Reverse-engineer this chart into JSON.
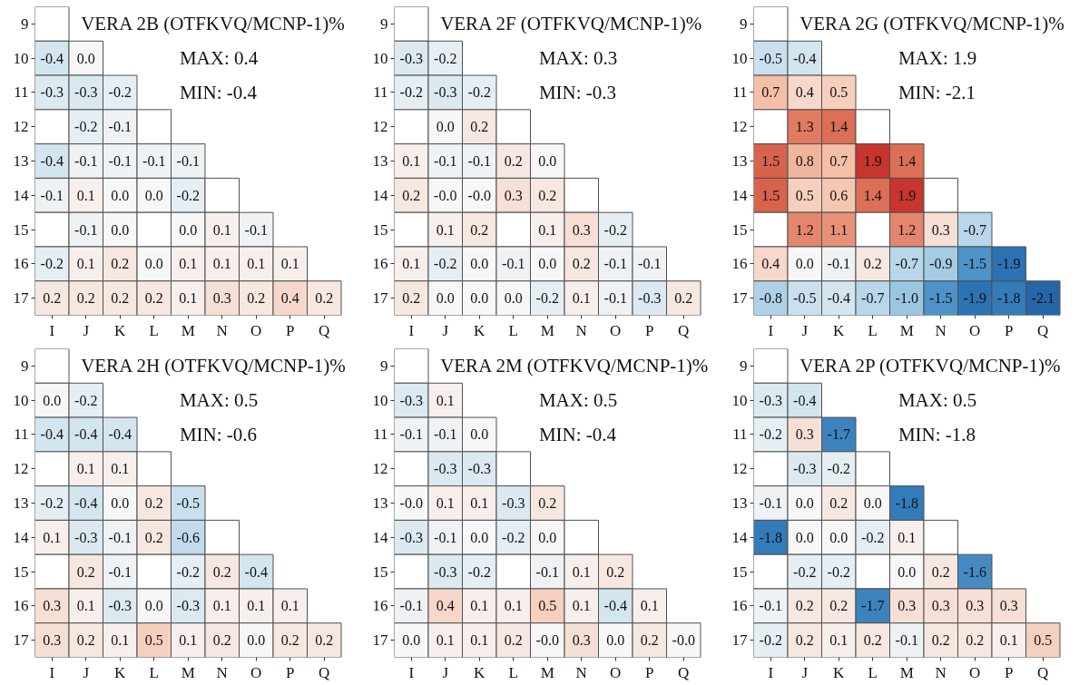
{
  "chart_data": [
    {
      "type": "heatmap",
      "title": "VERA 2B (OTFKVQ/MCNP-1)%",
      "annotations": [
        "MAX: 0.4",
        "MIN: -0.4"
      ],
      "categories": [
        "I",
        "J",
        "K",
        "L",
        "M",
        "N",
        "O",
        "P",
        "Q"
      ],
      "y_categories": [
        "9",
        "10",
        "11",
        "12",
        "13",
        "14",
        "15",
        "16",
        "17"
      ],
      "cells": [
        [
          null,
          null,
          null,
          null,
          null,
          null,
          null,
          null,
          null
        ],
        [
          -0.4,
          0.0,
          null,
          null,
          null,
          null,
          null,
          null,
          null
        ],
        [
          -0.3,
          -0.3,
          -0.2,
          null,
          null,
          null,
          null,
          null,
          null
        ],
        [
          null,
          -0.2,
          -0.1,
          null,
          null,
          null,
          null,
          null,
          null
        ],
        [
          -0.4,
          -0.1,
          -0.1,
          -0.1,
          -0.1,
          null,
          null,
          null,
          null
        ],
        [
          -0.1,
          0.1,
          0.0,
          0.0,
          -0.2,
          null,
          null,
          null,
          null
        ],
        [
          null,
          -0.1,
          0.0,
          null,
          0.0,
          0.1,
          -0.1,
          null,
          null
        ],
        [
          -0.2,
          0.1,
          0.2,
          0.0,
          0.1,
          0.1,
          0.1,
          0.1,
          null
        ],
        [
          0.2,
          0.2,
          0.2,
          0.2,
          0.1,
          0.3,
          0.2,
          0.4,
          0.2
        ]
      ],
      "cell_labels": [
        [
          null,
          null,
          null,
          null,
          null,
          null,
          null,
          null,
          null
        ],
        [
          "-0.4",
          "0.0",
          null,
          null,
          null,
          null,
          null,
          null,
          null
        ],
        [
          "-0.3",
          "-0.3",
          "-0.2",
          null,
          null,
          null,
          null,
          null,
          null
        ],
        [
          null,
          "-0.2",
          "-0.1",
          null,
          null,
          null,
          null,
          null,
          null
        ],
        [
          "-0.4",
          "-0.1",
          "-0.1",
          "-0.1",
          "-0.1",
          null,
          null,
          null,
          null
        ],
        [
          "-0.1",
          "0.1",
          "0.0",
          "0.0",
          "-0.2",
          null,
          null,
          null,
          null
        ],
        [
          null,
          "-0.1",
          "0.0",
          null,
          "0.0",
          "0.1",
          "-0.1",
          null,
          null
        ],
        [
          "-0.2",
          "0.1",
          "0.2",
          "0.0",
          "0.1",
          "0.1",
          "0.1",
          "0.1",
          null
        ],
        [
          "0.2",
          "0.2",
          "0.2",
          "0.2",
          "0.1",
          "0.3",
          "0.2",
          "0.4",
          "0.2"
        ]
      ]
    },
    {
      "type": "heatmap",
      "title": "VERA 2F (OTFKVQ/MCNP-1)%",
      "annotations": [
        "MAX: 0.3",
        "MIN: -0.3"
      ],
      "categories": [
        "I",
        "J",
        "K",
        "L",
        "M",
        "N",
        "O",
        "P",
        "Q"
      ],
      "y_categories": [
        "9",
        "10",
        "11",
        "12",
        "13",
        "14",
        "15",
        "16",
        "17"
      ],
      "cells": [
        [
          null,
          null,
          null,
          null,
          null,
          null,
          null,
          null,
          null
        ],
        [
          -0.3,
          -0.2,
          null,
          null,
          null,
          null,
          null,
          null,
          null
        ],
        [
          -0.2,
          -0.3,
          -0.2,
          null,
          null,
          null,
          null,
          null,
          null
        ],
        [
          null,
          0.0,
          0.2,
          null,
          null,
          null,
          null,
          null,
          null
        ],
        [
          0.1,
          -0.1,
          -0.1,
          0.2,
          0.0,
          null,
          null,
          null,
          null
        ],
        [
          0.2,
          -0.0,
          -0.0,
          0.3,
          0.2,
          null,
          null,
          null,
          null
        ],
        [
          null,
          0.1,
          0.2,
          null,
          0.1,
          0.3,
          -0.2,
          null,
          null
        ],
        [
          0.1,
          -0.2,
          0.0,
          -0.1,
          0.0,
          0.2,
          -0.1,
          -0.1,
          null
        ],
        [
          0.2,
          0.0,
          0.0,
          0.0,
          -0.2,
          0.1,
          -0.1,
          -0.3,
          0.2
        ]
      ],
      "cell_labels": [
        [
          null,
          null,
          null,
          null,
          null,
          null,
          null,
          null,
          null
        ],
        [
          "-0.3",
          "-0.2",
          null,
          null,
          null,
          null,
          null,
          null,
          null
        ],
        [
          "-0.2",
          "-0.3",
          "-0.2",
          null,
          null,
          null,
          null,
          null,
          null
        ],
        [
          null,
          "0.0",
          "0.2",
          null,
          null,
          null,
          null,
          null,
          null
        ],
        [
          "0.1",
          "-0.1",
          "-0.1",
          "0.2",
          "0.0",
          null,
          null,
          null,
          null
        ],
        [
          "0.2",
          "-0.0",
          "-0.0",
          "0.3",
          "0.2",
          null,
          null,
          null,
          null
        ],
        [
          null,
          "0.1",
          "0.2",
          null,
          "0.1",
          "0.3",
          "-0.2",
          null,
          null
        ],
        [
          "0.1",
          "-0.2",
          "0.0",
          "-0.1",
          "0.0",
          "0.2",
          "-0.1",
          "-0.1",
          null
        ],
        [
          "0.2",
          "0.0",
          "0.0",
          "0.0",
          "-0.2",
          "0.1",
          "-0.1",
          "-0.3",
          "0.2"
        ]
      ]
    },
    {
      "type": "heatmap",
      "title": "VERA 2G (OTFKVQ/MCNP-1)%",
      "annotations": [
        "MAX: 1.9",
        "MIN: -2.1"
      ],
      "categories": [
        "I",
        "J",
        "K",
        "L",
        "M",
        "N",
        "O",
        "P",
        "Q"
      ],
      "y_categories": [
        "9",
        "10",
        "11",
        "12",
        "13",
        "14",
        "15",
        "16",
        "17"
      ],
      "cells": [
        [
          null,
          null,
          null,
          null,
          null,
          null,
          null,
          null,
          null
        ],
        [
          -0.5,
          -0.4,
          null,
          null,
          null,
          null,
          null,
          null,
          null
        ],
        [
          0.7,
          0.4,
          0.5,
          null,
          null,
          null,
          null,
          null,
          null
        ],
        [
          null,
          1.3,
          1.4,
          null,
          null,
          null,
          null,
          null,
          null
        ],
        [
          1.5,
          0.8,
          0.7,
          1.9,
          1.4,
          null,
          null,
          null,
          null
        ],
        [
          1.5,
          0.5,
          0.6,
          1.4,
          1.9,
          null,
          null,
          null,
          null
        ],
        [
          null,
          1.2,
          1.1,
          null,
          1.2,
          0.3,
          -0.7,
          null,
          null
        ],
        [
          0.4,
          0.0,
          -0.1,
          0.2,
          -0.7,
          -0.9,
          -1.5,
          -1.9,
          null
        ],
        [
          -0.8,
          -0.5,
          -0.4,
          -0.7,
          -1.0,
          -1.5,
          -1.9,
          -1.8,
          -2.1
        ]
      ],
      "cell_labels": [
        [
          null,
          null,
          null,
          null,
          null,
          null,
          null,
          null,
          null
        ],
        [
          "-0.5",
          "-0.4",
          null,
          null,
          null,
          null,
          null,
          null,
          null
        ],
        [
          "0.7",
          "0.4",
          "0.5",
          null,
          null,
          null,
          null,
          null,
          null
        ],
        [
          null,
          "1.3",
          "1.4",
          null,
          null,
          null,
          null,
          null,
          null
        ],
        [
          "1.5",
          "0.8",
          "0.7",
          "1.9",
          "1.4",
          null,
          null,
          null,
          null
        ],
        [
          "1.5",
          "0.5",
          "0.6",
          "1.4",
          "1.9",
          null,
          null,
          null,
          null
        ],
        [
          null,
          "1.2",
          "1.1",
          null,
          "1.2",
          "0.3",
          "-0.7",
          null,
          null
        ],
        [
          "0.4",
          "0.0",
          "-0.1",
          "0.2",
          "-0.7",
          "-0.9",
          "-1.5",
          "-1.9",
          null
        ],
        [
          "-0.8",
          "-0.5",
          "-0.4",
          "-0.7",
          "-1.0",
          "-1.5",
          "-1.9",
          "-1.8",
          "-2.1"
        ]
      ]
    },
    {
      "type": "heatmap",
      "title": "VERA 2H (OTFKVQ/MCNP-1)%",
      "annotations": [
        "MAX: 0.5",
        "MIN: -0.6"
      ],
      "categories": [
        "I",
        "J",
        "K",
        "L",
        "M",
        "N",
        "O",
        "P",
        "Q"
      ],
      "y_categories": [
        "9",
        "10",
        "11",
        "12",
        "13",
        "14",
        "15",
        "16",
        "17"
      ],
      "cells": [
        [
          null,
          null,
          null,
          null,
          null,
          null,
          null,
          null,
          null
        ],
        [
          0.0,
          -0.2,
          null,
          null,
          null,
          null,
          null,
          null,
          null
        ],
        [
          -0.4,
          -0.4,
          -0.4,
          null,
          null,
          null,
          null,
          null,
          null
        ],
        [
          null,
          0.1,
          0.1,
          null,
          null,
          null,
          null,
          null,
          null
        ],
        [
          -0.2,
          -0.4,
          0.0,
          0.2,
          -0.5,
          null,
          null,
          null,
          null
        ],
        [
          0.1,
          -0.3,
          -0.1,
          0.2,
          -0.6,
          null,
          null,
          null,
          null
        ],
        [
          null,
          0.2,
          -0.1,
          null,
          -0.2,
          0.2,
          -0.4,
          null,
          null
        ],
        [
          0.3,
          0.1,
          -0.3,
          0.0,
          -0.3,
          0.1,
          0.1,
          0.1,
          null
        ],
        [
          0.3,
          0.2,
          0.1,
          0.5,
          0.1,
          0.2,
          0.0,
          0.2,
          0.2
        ]
      ],
      "cell_labels": [
        [
          null,
          null,
          null,
          null,
          null,
          null,
          null,
          null,
          null
        ],
        [
          "0.0",
          "-0.2",
          null,
          null,
          null,
          null,
          null,
          null,
          null
        ],
        [
          "-0.4",
          "-0.4",
          "-0.4",
          null,
          null,
          null,
          null,
          null,
          null
        ],
        [
          null,
          "0.1",
          "0.1",
          null,
          null,
          null,
          null,
          null,
          null
        ],
        [
          "-0.2",
          "-0.4",
          "0.0",
          "0.2",
          "-0.5",
          null,
          null,
          null,
          null
        ],
        [
          "0.1",
          "-0.3",
          "-0.1",
          "0.2",
          "-0.6",
          null,
          null,
          null,
          null
        ],
        [
          null,
          "0.2",
          "-0.1",
          null,
          "-0.2",
          "0.2",
          "-0.4",
          null,
          null
        ],
        [
          "0.3",
          "0.1",
          "-0.3",
          "0.0",
          "-0.3",
          "0.1",
          "0.1",
          "0.1",
          null
        ],
        [
          "0.3",
          "0.2",
          "0.1",
          "0.5",
          "0.1",
          "0.2",
          "0.0",
          "0.2",
          "0.2"
        ]
      ]
    },
    {
      "type": "heatmap",
      "title": "VERA 2M (OTFKVQ/MCNP-1)%",
      "annotations": [
        "MAX: 0.5",
        "MIN: -0.4"
      ],
      "categories": [
        "I",
        "J",
        "K",
        "L",
        "M",
        "N",
        "O",
        "P",
        "Q"
      ],
      "y_categories": [
        "9",
        "10",
        "11",
        "12",
        "13",
        "14",
        "15",
        "16",
        "17"
      ],
      "cells": [
        [
          null,
          null,
          null,
          null,
          null,
          null,
          null,
          null,
          null
        ],
        [
          -0.3,
          0.1,
          null,
          null,
          null,
          null,
          null,
          null,
          null
        ],
        [
          -0.1,
          -0.1,
          0.0,
          null,
          null,
          null,
          null,
          null,
          null
        ],
        [
          null,
          -0.3,
          -0.3,
          null,
          null,
          null,
          null,
          null,
          null
        ],
        [
          -0.0,
          0.1,
          0.1,
          -0.3,
          0.2,
          null,
          null,
          null,
          null
        ],
        [
          -0.3,
          -0.1,
          0.0,
          -0.2,
          0.0,
          null,
          null,
          null,
          null
        ],
        [
          null,
          -0.3,
          -0.2,
          null,
          -0.1,
          0.1,
          0.2,
          null,
          null
        ],
        [
          -0.1,
          0.4,
          0.1,
          0.1,
          0.5,
          0.1,
          -0.4,
          0.1,
          null
        ],
        [
          0.0,
          0.1,
          0.1,
          0.2,
          -0.0,
          0.3,
          0.0,
          0.2,
          -0.0
        ]
      ],
      "cell_labels": [
        [
          null,
          null,
          null,
          null,
          null,
          null,
          null,
          null,
          null
        ],
        [
          "-0.3",
          "0.1",
          null,
          null,
          null,
          null,
          null,
          null,
          null
        ],
        [
          "-0.1",
          "-0.1",
          "0.0",
          null,
          null,
          null,
          null,
          null,
          null
        ],
        [
          null,
          "-0.3",
          "-0.3",
          null,
          null,
          null,
          null,
          null,
          null
        ],
        [
          "-0.0",
          "0.1",
          "0.1",
          "-0.3",
          "0.2",
          null,
          null,
          null,
          null
        ],
        [
          "-0.3",
          "-0.1",
          "0.0",
          "-0.2",
          "0.0",
          null,
          null,
          null,
          null
        ],
        [
          null,
          "-0.3",
          "-0.2",
          null,
          "-0.1",
          "0.1",
          "0.2",
          null,
          null
        ],
        [
          "-0.1",
          "0.4",
          "0.1",
          "0.1",
          "0.5",
          "0.1",
          "-0.4",
          "0.1",
          null
        ],
        [
          "0.0",
          "0.1",
          "0.1",
          "0.2",
          "-0.0",
          "0.3",
          "0.0",
          "0.2",
          "-0.0"
        ]
      ]
    },
    {
      "type": "heatmap",
      "title": "VERA 2P (OTFKVQ/MCNP-1)%",
      "annotations": [
        "MAX: 0.5",
        "MIN: -1.8"
      ],
      "categories": [
        "I",
        "J",
        "K",
        "L",
        "M",
        "N",
        "O",
        "P",
        "Q"
      ],
      "y_categories": [
        "9",
        "10",
        "11",
        "12",
        "13",
        "14",
        "15",
        "16",
        "17"
      ],
      "cells": [
        [
          null,
          null,
          null,
          null,
          null,
          null,
          null,
          null,
          null
        ],
        [
          -0.3,
          -0.4,
          null,
          null,
          null,
          null,
          null,
          null,
          null
        ],
        [
          -0.2,
          0.3,
          -1.7,
          null,
          null,
          null,
          null,
          null,
          null
        ],
        [
          null,
          -0.3,
          -0.2,
          null,
          null,
          null,
          null,
          null,
          null
        ],
        [
          -0.1,
          0.0,
          0.2,
          0.0,
          -1.8,
          null,
          null,
          null,
          null
        ],
        [
          -1.8,
          0.0,
          0.0,
          -0.2,
          0.1,
          null,
          null,
          null,
          null
        ],
        [
          null,
          -0.2,
          -0.2,
          null,
          0.0,
          0.2,
          -1.6,
          null,
          null
        ],
        [
          -0.1,
          0.2,
          0.2,
          -1.7,
          0.3,
          0.3,
          0.3,
          0.3,
          null
        ],
        [
          -0.2,
          0.2,
          0.1,
          0.2,
          -0.1,
          0.2,
          0.2,
          0.1,
          0.5
        ]
      ],
      "cell_labels": [
        [
          null,
          null,
          null,
          null,
          null,
          null,
          null,
          null,
          null
        ],
        [
          "-0.3",
          "-0.4",
          null,
          null,
          null,
          null,
          null,
          null,
          null
        ],
        [
          "-0.2",
          "0.3",
          "-1.7",
          null,
          null,
          null,
          null,
          null,
          null
        ],
        [
          null,
          "-0.3",
          "-0.2",
          null,
          null,
          null,
          null,
          null,
          null
        ],
        [
          "-0.1",
          "0.0",
          "0.2",
          "0.0",
          "-1.8",
          null,
          null,
          null,
          null
        ],
        [
          "-1.8",
          "0.0",
          "0.0",
          "-0.2",
          "0.1",
          null,
          null,
          null,
          null
        ],
        [
          null,
          "-0.2",
          "-0.2",
          null,
          "0.0",
          "0.2",
          "-1.6",
          null,
          null
        ],
        [
          "-0.1",
          "0.2",
          "0.2",
          "-1.7",
          "0.3",
          "0.3",
          "0.3",
          "0.3",
          null
        ],
        [
          "-0.2",
          "0.2",
          "0.1",
          "0.2",
          "-0.1",
          "0.2",
          "0.2",
          "0.1",
          "0.5"
        ]
      ]
    }
  ]
}
